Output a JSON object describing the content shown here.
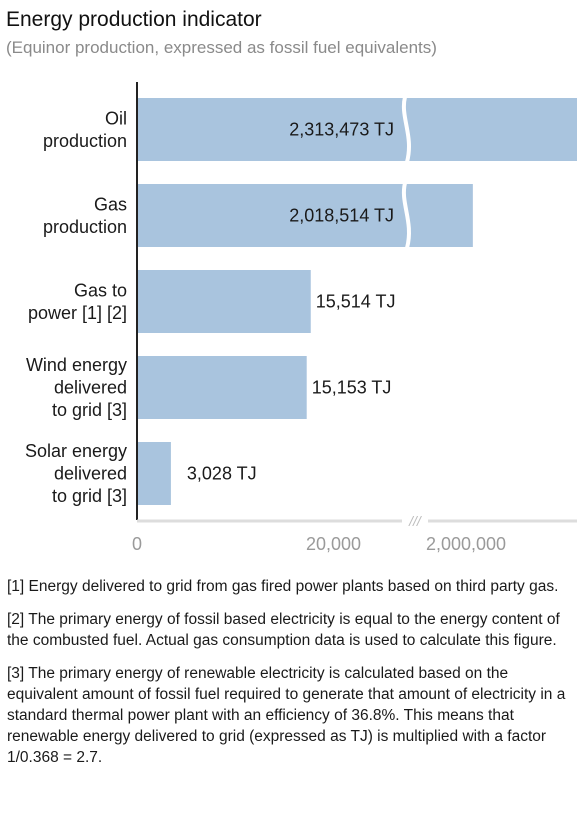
{
  "header": {
    "title": "Energy production indicator",
    "subtitle": "(Equinor production, expressed as fossil fuel equivalents)"
  },
  "chart_data": {
    "type": "bar",
    "orientation": "horizontal",
    "axis_break": true,
    "categories": [
      [
        "Oil",
        "production"
      ],
      [
        "Gas",
        "production"
      ],
      [
        "Gas to",
        "power [1] [2]"
      ],
      [
        "Wind energy",
        "delivered",
        "to grid [3]"
      ],
      [
        "Solar energy",
        "delivered",
        "to grid [3]"
      ]
    ],
    "values": [
      2313473,
      2018514,
      15514,
      15153,
      3028
    ],
    "value_labels": [
      "2,313,473 TJ",
      "2,018,514 TJ",
      "15,514 TJ",
      "15,153 TJ",
      "3,028 TJ"
    ],
    "unit": "TJ",
    "x_ticks": [
      "0",
      "20,000",
      "2,000,000"
    ],
    "lower_segment_range": [
      0,
      20000
    ],
    "upper_segment_range": [
      2000000,
      2300000
    ],
    "bar_color": "#a9c4de",
    "break_symbol": "///",
    "grid": false,
    "legend": "none"
  },
  "footnotes": [
    "[1] Energy delivered to grid from gas fired power plants based on third party gas.",
    "[2] The primary energy of fossil based electricity is equal to the energy content of the combusted fuel. Actual gas consumption data is used to calculate this figure.",
    "[3] The primary energy of renewable electricity is calculated based on the equivalent amount of fossil fuel required to generate that amount of electricity in a standard thermal power plant with an efficiency of 36.8%. This means that renewable energy delivered to grid (expressed as TJ) is multiplied with a factor 1/0.368 = 2.7."
  ]
}
